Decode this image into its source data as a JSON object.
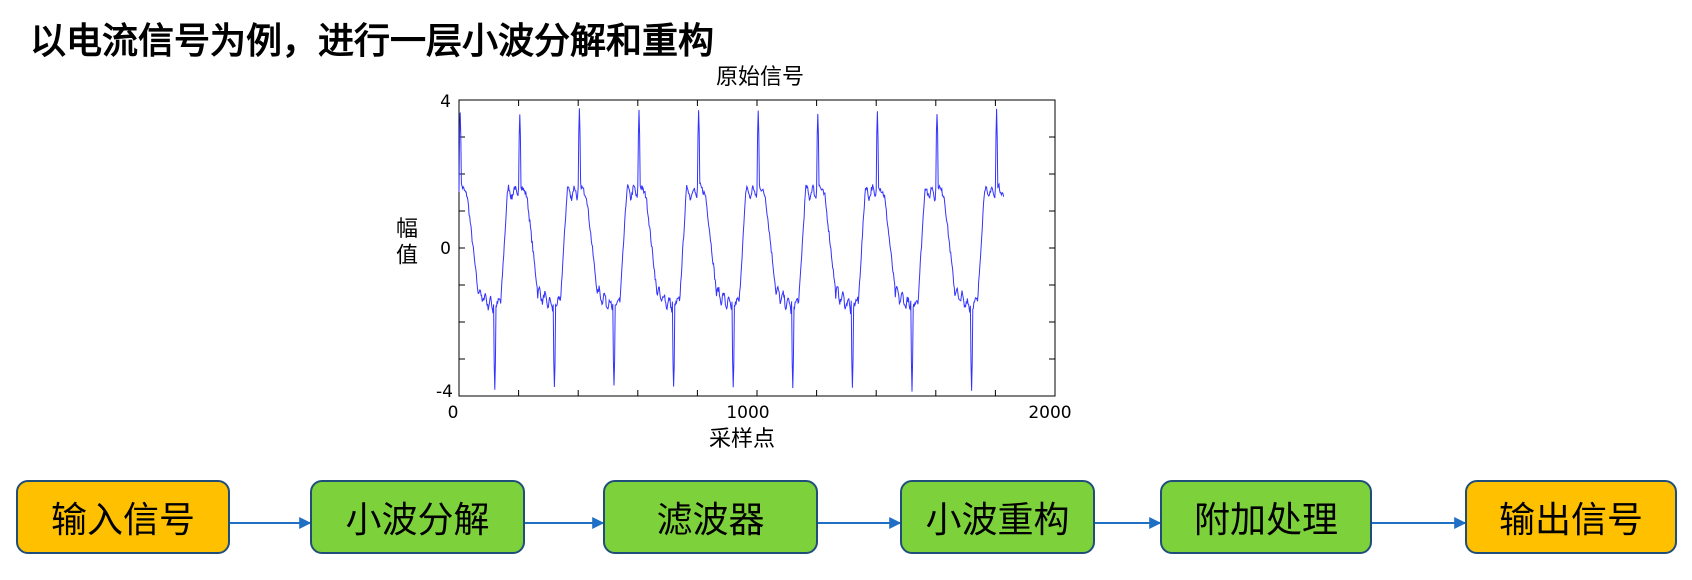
{
  "heading": "以电流信号为例，进行一层小波分解和重构",
  "chart_data": {
    "type": "line",
    "title": "原始信号",
    "xlabel": "采样点",
    "ylabel": "幅值",
    "xlim": [
      0,
      2000
    ],
    "ylim": [
      -4,
      4
    ],
    "x_ticks": [
      "0",
      "1000",
      "2000"
    ],
    "y_ticks": [
      "4",
      "0",
      "-4"
    ],
    "line_color": "#3333ff",
    "period_samples": 200,
    "num_samples": 1830,
    "grid": false
  },
  "flow": {
    "boxes": [
      {
        "label": "输入信号",
        "color": "#ffc000"
      },
      {
        "label": "小波分解",
        "color": "#7dd13a"
      },
      {
        "label": "滤波器",
        "color": "#7dd13a"
      },
      {
        "label": "小波重构",
        "color": "#7dd13a"
      },
      {
        "label": "附加处理",
        "color": "#7dd13a"
      },
      {
        "label": "输出信号",
        "color": "#ffc000"
      }
    ],
    "arrow_color": "#1f6fc5"
  }
}
